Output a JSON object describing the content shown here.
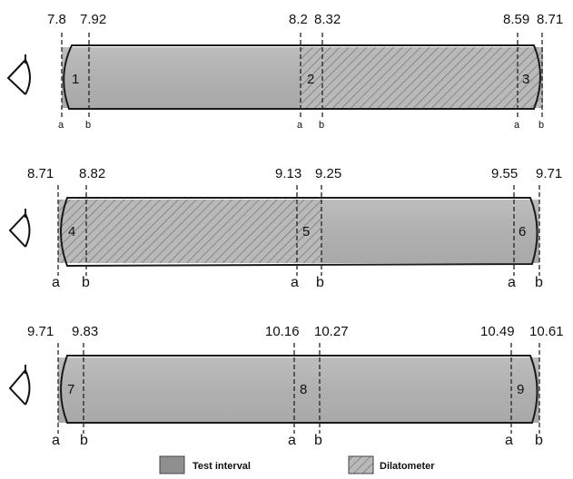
{
  "rows": [
    {
      "depths": [
        "7.8",
        "7.92",
        "8.2",
        "8.32",
        "8.59",
        "8.71"
      ],
      "segments": [
        "1",
        "2",
        "3"
      ],
      "markers": [
        "a",
        "b",
        "a",
        "b",
        "a",
        "b"
      ],
      "fills": [
        "test",
        "dilatometer",
        "dilatometer"
      ]
    },
    {
      "depths": [
        "8.71",
        "8.82",
        "9.13",
        "9.25",
        "9.55",
        "9.71"
      ],
      "segments": [
        "4",
        "5",
        "6"
      ],
      "markers": [
        "a",
        "b",
        "a",
        "b",
        "a",
        "b"
      ],
      "fills": [
        "dilatometer",
        "dilatometer",
        "test"
      ]
    },
    {
      "depths": [
        "9.71",
        "9.83",
        "10.16",
        "10.27",
        "10.49",
        "10.61"
      ],
      "segments": [
        "7",
        "8",
        "9"
      ],
      "markers": [
        "a",
        "b",
        "a",
        "b",
        "a",
        "b"
      ],
      "fills": [
        "test",
        "test",
        "test"
      ]
    }
  ],
  "legend": {
    "test_label": "Test interval",
    "dilatometer_label": "Dilatometer"
  },
  "colors": {
    "core_fill": "#b4b4b4",
    "outline": "#1a1a1a",
    "hatch": "#6e6e6e"
  }
}
